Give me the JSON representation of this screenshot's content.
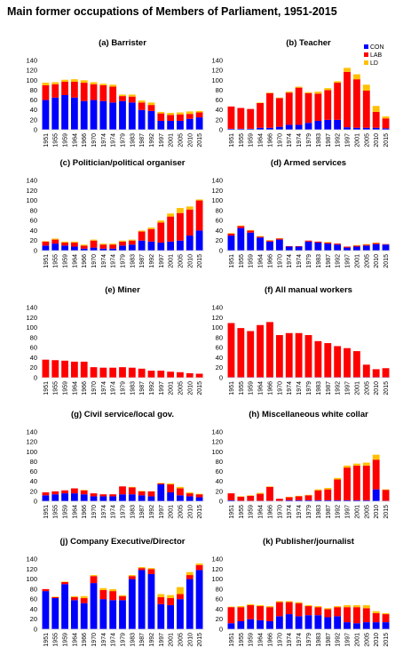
{
  "title": "Main former occupations of Members of Parliament, 1951-2015",
  "colors": {
    "CON": "#0000ff",
    "LAB": "#ff0000",
    "LD": "#ffc000"
  },
  "chart_data": [
    {
      "type": "bar",
      "stacked": true,
      "title": "(a) Barrister",
      "ylim": [
        0,
        140
      ],
      "yticks": [
        0,
        20,
        40,
        60,
        80,
        100,
        120,
        140
      ],
      "categories": [
        "1951",
        "1955",
        "1959",
        "1964",
        "1966",
        "1970",
        "1974",
        "1974",
        "1979",
        "1983",
        "1987",
        "1992",
        "1997",
        "2001",
        "2005",
        "2010",
        "2015"
      ],
      "series": [
        {
          "name": "CON",
          "values": [
            60,
            65,
            70,
            65,
            58,
            60,
            58,
            55,
            58,
            55,
            40,
            38,
            18,
            18,
            18,
            22,
            25
          ]
        },
        {
          "name": "LAB",
          "values": [
            30,
            27,
            27,
            32,
            37,
            32,
            32,
            32,
            10,
            12,
            15,
            12,
            15,
            12,
            13,
            10,
            10
          ]
        },
        {
          "name": "LD",
          "values": [
            5,
            4,
            4,
            5,
            5,
            4,
            3,
            4,
            3,
            4,
            4,
            5,
            3,
            4,
            4,
            5,
            3
          ]
        }
      ]
    },
    {
      "type": "bar",
      "stacked": true,
      "title": "(b) Teacher",
      "ylim": [
        0,
        140
      ],
      "yticks": [
        0,
        20,
        40,
        60,
        80,
        100,
        120,
        140
      ],
      "legend": "top-right",
      "categories": [
        "1951",
        "1955",
        "1959",
        "1964",
        "1966",
        "1970",
        "1974",
        "1974",
        "1979",
        "1983",
        "1987",
        "1992",
        "1997",
        "2001",
        "2005",
        "2010",
        "2015"
      ],
      "series": [
        {
          "name": "CON",
          "values": [
            2,
            2,
            2,
            4,
            4,
            6,
            10,
            10,
            14,
            18,
            20,
            20,
            5,
            4,
            4,
            4,
            3
          ]
        },
        {
          "name": "LAB",
          "values": [
            45,
            42,
            40,
            50,
            70,
            58,
            65,
            75,
            60,
            55,
            60,
            75,
            112,
            98,
            75,
            32,
            20
          ]
        },
        {
          "name": "LD",
          "values": [
            0,
            0,
            0,
            1,
            1,
            1,
            2,
            2,
            2,
            4,
            4,
            3,
            8,
            10,
            12,
            12,
            4
          ]
        }
      ]
    },
    {
      "type": "bar",
      "stacked": true,
      "title": "(c) Politician/political organiser",
      "ylim": [
        0,
        140
      ],
      "yticks": [
        0,
        20,
        40,
        60,
        80,
        100,
        120,
        140
      ],
      "categories": [
        "1951",
        "1955",
        "1959",
        "1964",
        "1966",
        "1970",
        "1974",
        "1974",
        "1979",
        "1983",
        "1987",
        "1992",
        "1997",
        "2001",
        "2005",
        "2010",
        "2015"
      ],
      "series": [
        {
          "name": "CON",
          "values": [
            10,
            14,
            10,
            8,
            4,
            6,
            4,
            4,
            10,
            12,
            20,
            18,
            16,
            18,
            20,
            30,
            40
          ]
        },
        {
          "name": "LAB",
          "values": [
            8,
            8,
            6,
            8,
            6,
            14,
            8,
            8,
            8,
            8,
            18,
            25,
            40,
            50,
            55,
            52,
            60
          ]
        },
        {
          "name": "LD",
          "values": [
            1,
            2,
            2,
            2,
            2,
            2,
            2,
            2,
            2,
            2,
            2,
            3,
            4,
            6,
            10,
            6,
            2
          ]
        }
      ]
    },
    {
      "type": "bar",
      "stacked": true,
      "title": "(d) Armed services",
      "ylim": [
        0,
        140
      ],
      "yticks": [
        0,
        20,
        40,
        60,
        80,
        100,
        120,
        140
      ],
      "categories": [
        "1951",
        "1955",
        "1959",
        "1964",
        "1966",
        "1970",
        "1974",
        "1974",
        "1979",
        "1983",
        "1987",
        "1992",
        "1997",
        "2001",
        "2005",
        "2010",
        "2015"
      ],
      "series": [
        {
          "name": "CON",
          "values": [
            30,
            45,
            36,
            26,
            18,
            22,
            8,
            8,
            18,
            16,
            14,
            12,
            6,
            8,
            10,
            13,
            12
          ]
        },
        {
          "name": "LAB",
          "values": [
            4,
            4,
            4,
            2,
            2,
            2,
            1,
            1,
            2,
            2,
            2,
            2,
            2,
            2,
            2,
            2,
            1
          ]
        },
        {
          "name": "LD",
          "values": [
            1,
            1,
            1,
            1,
            1,
            1,
            0,
            0,
            0,
            0,
            1,
            0,
            0,
            1,
            1,
            1,
            0
          ]
        }
      ]
    },
    {
      "type": "bar",
      "stacked": true,
      "title": "(e) Miner",
      "ylim": [
        0,
        140
      ],
      "yticks": [
        0,
        20,
        40,
        60,
        80,
        100,
        120,
        140
      ],
      "categories": [
        "1951",
        "1955",
        "1959",
        "1964",
        "1966",
        "1970",
        "1974",
        "1974",
        "1979",
        "1983",
        "1987",
        "1992",
        "1997",
        "2001",
        "2005",
        "2010",
        "2015"
      ],
      "series": [
        {
          "name": "CON",
          "values": [
            0,
            0,
            0,
            0,
            0,
            0,
            0,
            0,
            0,
            0,
            0,
            0,
            0,
            0,
            0,
            0,
            0
          ]
        },
        {
          "name": "LAB",
          "values": [
            36,
            35,
            34,
            32,
            32,
            21,
            20,
            20,
            21,
            20,
            18,
            14,
            14,
            12,
            11,
            9,
            8
          ]
        },
        {
          "name": "LD",
          "values": [
            0,
            0,
            0,
            0,
            0,
            0,
            0,
            0,
            0,
            0,
            0,
            0,
            0,
            0,
            0,
            0,
            0
          ]
        }
      ]
    },
    {
      "type": "bar",
      "stacked": true,
      "title": "(f) All manual workers",
      "ylim": [
        0,
        140
      ],
      "yticks": [
        0,
        20,
        40,
        60,
        80,
        100,
        120,
        140
      ],
      "categories": [
        "1951",
        "1955",
        "1959",
        "1964",
        "1966",
        "1970",
        "1974",
        "1974",
        "1979",
        "1983",
        "1987",
        "1992",
        "1997",
        "2001",
        "2005",
        "2010",
        "2015"
      ],
      "series": [
        {
          "name": "CON",
          "values": [
            1,
            1,
            1,
            1,
            1,
            1,
            1,
            1,
            1,
            1,
            1,
            1,
            1,
            1,
            1,
            1,
            1
          ]
        },
        {
          "name": "LAB",
          "values": [
            108,
            98,
            92,
            104,
            110,
            84,
            88,
            88,
            84,
            72,
            68,
            62,
            58,
            52,
            25,
            16,
            18
          ]
        },
        {
          "name": "LD",
          "values": [
            0,
            0,
            0,
            0,
            0,
            0,
            0,
            0,
            0,
            0,
            0,
            0,
            0,
            0,
            0,
            0,
            0
          ]
        }
      ]
    },
    {
      "type": "bar",
      "stacked": true,
      "title": "(g) Civil service/local gov.",
      "ylim": [
        0,
        140
      ],
      "yticks": [
        0,
        20,
        40,
        60,
        80,
        100,
        120,
        140
      ],
      "categories": [
        "1951",
        "1955",
        "1959",
        "1964",
        "1966",
        "1970",
        "1974",
        "1974",
        "1979",
        "1983",
        "1987",
        "1992",
        "1997",
        "2001",
        "2005",
        "2010",
        "2015"
      ],
      "series": [
        {
          "name": "CON",
          "values": [
            12,
            14,
            16,
            16,
            14,
            10,
            10,
            10,
            14,
            14,
            12,
            10,
            34,
            18,
            12,
            10,
            8
          ]
        },
        {
          "name": "LAB",
          "values": [
            6,
            6,
            6,
            10,
            8,
            6,
            4,
            4,
            16,
            14,
            8,
            10,
            2,
            16,
            14,
            6,
            6
          ]
        },
        {
          "name": "LD",
          "values": [
            0,
            0,
            0,
            0,
            1,
            0,
            0,
            0,
            0,
            1,
            1,
            0,
            1,
            2,
            3,
            2,
            1
          ]
        }
      ]
    },
    {
      "type": "bar",
      "stacked": true,
      "title": "(h) Miscellaneous white collar",
      "ylim": [
        0,
        140
      ],
      "yticks": [
        0,
        20,
        40,
        60,
        80,
        100,
        120,
        140
      ],
      "categories": [
        "1951",
        "1955",
        "1959",
        "1964",
        "1966",
        "1970",
        "1974",
        "1974",
        "1979",
        "1983",
        "1987",
        "1992",
        "1997",
        "2001",
        "2005",
        "2010",
        "2015"
      ],
      "series": [
        {
          "name": "CON",
          "values": [
            2,
            1,
            1,
            1,
            1,
            1,
            2,
            2,
            2,
            2,
            2,
            2,
            2,
            2,
            2,
            24,
            1
          ]
        },
        {
          "name": "LAB",
          "values": [
            14,
            8,
            10,
            14,
            28,
            4,
            6,
            8,
            10,
            20,
            22,
            42,
            66,
            70,
            70,
            60,
            22
          ]
        },
        {
          "name": "LD",
          "values": [
            0,
            1,
            1,
            2,
            1,
            0,
            1,
            1,
            1,
            2,
            3,
            3,
            4,
            4,
            6,
            10,
            1
          ]
        }
      ]
    },
    {
      "type": "bar",
      "stacked": true,
      "title": "(j) Company Executive/Director",
      "ylim": [
        0,
        140
      ],
      "yticks": [
        0,
        20,
        40,
        60,
        80,
        100,
        120,
        140
      ],
      "categories": [
        "1951",
        "1955",
        "1959",
        "1964",
        "1966",
        "1970",
        "1974",
        "1974",
        "1979",
        "1983",
        "1987",
        "1992",
        "1997",
        "2001",
        "2005",
        "2010",
        "2015"
      ],
      "series": [
        {
          "name": "CON",
          "values": [
            76,
            62,
            90,
            58,
            52,
            92,
            60,
            58,
            58,
            100,
            118,
            110,
            50,
            48,
            60,
            100,
            118
          ]
        },
        {
          "name": "LAB",
          "values": [
            4,
            2,
            4,
            6,
            10,
            14,
            18,
            18,
            8,
            6,
            4,
            10,
            14,
            14,
            10,
            8,
            10
          ]
        },
        {
          "name": "LD",
          "values": [
            0,
            1,
            1,
            2,
            4,
            2,
            4,
            4,
            2,
            2,
            2,
            2,
            6,
            6,
            14,
            6,
            3
          ]
        }
      ]
    },
    {
      "type": "bar",
      "stacked": true,
      "title": "(k) Publisher/journalist",
      "ylim": [
        0,
        140
      ],
      "yticks": [
        0,
        20,
        40,
        60,
        80,
        100,
        120,
        140
      ],
      "categories": [
        "1951",
        "1955",
        "1959",
        "1964",
        "1966",
        "1970",
        "1974",
        "1974",
        "1979",
        "1983",
        "1987",
        "1992",
        "1997",
        "2001",
        "2005",
        "2010",
        "2015"
      ],
      "series": [
        {
          "name": "CON",
          "values": [
            12,
            16,
            20,
            18,
            16,
            26,
            30,
            26,
            28,
            28,
            24,
            26,
            14,
            12,
            14,
            14,
            14
          ]
        },
        {
          "name": "LAB",
          "values": [
            32,
            28,
            28,
            28,
            28,
            28,
            24,
            26,
            18,
            16,
            16,
            18,
            30,
            32,
            28,
            18,
            16
          ]
        },
        {
          "name": "LD",
          "values": [
            1,
            2,
            2,
            2,
            2,
            2,
            2,
            2,
            2,
            2,
            2,
            2,
            4,
            4,
            6,
            4,
            2
          ]
        }
      ]
    }
  ]
}
